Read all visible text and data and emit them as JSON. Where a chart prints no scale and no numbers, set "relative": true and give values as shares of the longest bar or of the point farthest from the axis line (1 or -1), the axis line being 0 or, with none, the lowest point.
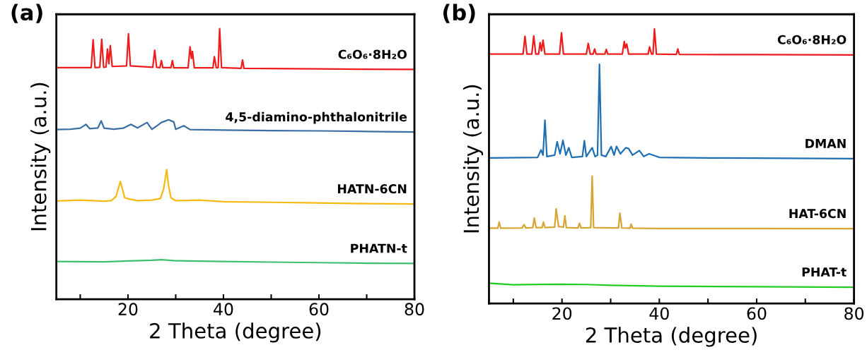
{
  "chart_data": [
    {
      "type": "line",
      "title": "(a)",
      "xlabel": "2 Theta (degree)",
      "ylabel": "Intensity (a.u.)",
      "relative": true,
      "tick_labels": "x",
      "xlim": [
        5,
        80
      ],
      "xticks": [
        {
          "value": 10,
          "label": null
        },
        20,
        {
          "value": 30,
          "label": null
        },
        40,
        {
          "value": 50,
          "label": null
        },
        60,
        {
          "value": 70,
          "label": null
        },
        80
      ],
      "grid": false,
      "legend": false,
      "series": [
        {
          "name": "C₆O₆·8H₂O",
          "color": "#ee1c1c",
          "x": [
            5,
            12.3,
            12.7,
            13.1,
            14.1,
            14.5,
            14.9,
            15.4,
            15.7,
            16.0,
            16.3,
            16.7,
            19.7,
            20.1,
            20.5,
            25.2,
            25.6,
            26.0,
            26.7,
            27.0,
            27.3,
            29.0,
            29.3,
            29.6,
            32.6,
            33.0,
            33.3,
            33.5,
            33.9,
            37.8,
            38.1,
            38.5,
            38.9,
            39.2,
            39.6,
            43.7,
            44.0,
            44.3,
            60,
            80
          ],
          "values": [
            0.856,
            0.856,
            0.959,
            0.856,
            0.857,
            0.961,
            0.857,
            0.858,
            0.924,
            0.87,
            0.937,
            0.86,
            0.862,
            0.981,
            0.862,
            0.857,
            0.92,
            0.857,
            0.856,
            0.882,
            0.856,
            0.856,
            0.882,
            0.855,
            0.855,
            0.933,
            0.89,
            0.916,
            0.855,
            0.855,
            0.896,
            0.855,
            0.856,
            1.0,
            0.856,
            0.853,
            0.884,
            0.853,
            0.851,
            0.849
          ]
        },
        {
          "name": "4,5-diamino-phthalonitrile",
          "color": "#3a6ea5",
          "x": [
            5,
            8,
            10,
            11.2,
            12,
            13.7,
            14.4,
            15,
            17,
            19,
            20.6,
            22,
            24,
            25,
            26,
            27,
            28.5,
            29.6,
            30,
            31.7,
            33,
            40,
            50,
            60,
            70,
            80
          ],
          "values": [
            0.627,
            0.628,
            0.632,
            0.646,
            0.63,
            0.633,
            0.659,
            0.632,
            0.628,
            0.632,
            0.646,
            0.633,
            0.653,
            0.628,
            0.64,
            0.653,
            0.663,
            0.655,
            0.628,
            0.641,
            0.627,
            0.625,
            0.623,
            0.622,
            0.62,
            0.618
          ]
        },
        {
          "name": "HATN-6CN",
          "color": "#f5b914",
          "x": [
            5,
            10,
            15,
            16.5,
            17.5,
            18.0,
            18.4,
            18.8,
            19.3,
            20.3,
            22,
            25,
            26.8,
            27.5,
            28.1,
            28.5,
            29.0,
            30,
            35,
            40,
            50,
            60,
            70,
            80
          ],
          "values": [
            0.363,
            0.366,
            0.362,
            0.364,
            0.38,
            0.41,
            0.435,
            0.41,
            0.375,
            0.37,
            0.364,
            0.366,
            0.372,
            0.41,
            0.479,
            0.42,
            0.375,
            0.364,
            0.366,
            0.36,
            0.358,
            0.356,
            0.353,
            0.352
          ]
        },
        {
          "name": "PHATN-t",
          "color": "#3cbf6e",
          "x": [
            5,
            15,
            20,
            25,
            27,
            30,
            40,
            50,
            60,
            70,
            80
          ],
          "values": [
            0.139,
            0.138,
            0.141,
            0.144,
            0.146,
            0.142,
            0.139,
            0.137,
            0.135,
            0.133,
            0.132
          ]
        }
      ]
    },
    {
      "type": "line",
      "title": "(b)",
      "xlabel": "2 Theta (degree)",
      "ylabel": "Intensity (a.u.)",
      "relative": true,
      "tick_labels": "x",
      "xlim": [
        5,
        80
      ],
      "xticks": [
        {
          "value": 10,
          "label": null
        },
        20,
        {
          "value": 30,
          "label": null
        },
        40,
        {
          "value": 50,
          "label": null
        },
        60,
        {
          "value": 70,
          "label": null
        },
        80
      ],
      "grid": false,
      "legend": false,
      "series": [
        {
          "name": "C₆O₆·8H₂O",
          "color": "#ee1c1c",
          "x": [
            5,
            12.0,
            12.4,
            12.8,
            13.8,
            14.2,
            14.6,
            15.2,
            15.5,
            15.8,
            16.1,
            16.5,
            19.5,
            19.9,
            20.3,
            25.0,
            25.4,
            25.8,
            26.4,
            26.7,
            27.0,
            28.8,
            29.1,
            29.4,
            32.4,
            32.8,
            33.0,
            33.3,
            33.7,
            37.7,
            38.0,
            38.4,
            38.7,
            39.0,
            39.4,
            43.5,
            43.8,
            44.1,
            60,
            80
          ],
          "values": [
            0.908,
            0.908,
            0.973,
            0.908,
            0.908,
            0.974,
            0.908,
            0.908,
            0.95,
            0.92,
            0.959,
            0.908,
            0.908,
            0.986,
            0.908,
            0.908,
            0.947,
            0.908,
            0.908,
            0.927,
            0.908,
            0.908,
            0.925,
            0.908,
            0.908,
            0.954,
            0.93,
            0.945,
            0.908,
            0.908,
            0.934,
            0.908,
            0.908,
            1.0,
            0.908,
            0.907,
            0.927,
            0.907,
            0.906,
            0.905
          ]
        },
        {
          "name": "DMAN",
          "color": "#1f6fb4",
          "x": [
            5,
            15.0,
            15.7,
            16.1,
            16.5,
            16.9,
            18.5,
            19.0,
            19.6,
            20.2,
            20.8,
            21.4,
            22.0,
            24.2,
            24.6,
            25.0,
            26.2,
            26.8,
            27.3,
            27.7,
            28.1,
            29.0,
            30.1,
            30.7,
            31.2,
            32.0,
            33.1,
            33.7,
            34.5,
            35.9,
            36.8,
            37.9,
            40,
            50,
            60,
            80
          ],
          "values": [
            0.53,
            0.532,
            0.559,
            0.54,
            0.667,
            0.535,
            0.54,
            0.589,
            0.545,
            0.594,
            0.54,
            0.567,
            0.532,
            0.535,
            0.593,
            0.535,
            0.567,
            0.535,
            0.54,
            0.871,
            0.54,
            0.535,
            0.571,
            0.54,
            0.572,
            0.545,
            0.567,
            0.564,
            0.54,
            0.557,
            0.535,
            0.545,
            0.532,
            0.53,
            0.529,
            0.527
          ]
        },
        {
          "name": "HAT-6CN",
          "color": "#d9a532",
          "x": [
            5,
            6.8,
            7.1,
            7.4,
            11.8,
            12.2,
            12.6,
            14.0,
            14.3,
            14.7,
            15.9,
            16.2,
            16.5,
            18.5,
            18.8,
            19.3,
            20.3,
            20.6,
            20.9,
            23.3,
            23.6,
            23.9,
            25.9,
            26.2,
            26.5,
            31.6,
            31.9,
            32.3,
            34.0,
            34.2,
            34.5,
            40,
            60,
            80
          ],
          "values": [
            0.274,
            0.274,
            0.296,
            0.274,
            0.275,
            0.287,
            0.275,
            0.276,
            0.311,
            0.276,
            0.276,
            0.296,
            0.276,
            0.278,
            0.344,
            0.28,
            0.278,
            0.319,
            0.276,
            0.275,
            0.292,
            0.275,
            0.276,
            0.464,
            0.276,
            0.275,
            0.329,
            0.275,
            0.274,
            0.289,
            0.274,
            0.273,
            0.273,
            0.272
          ]
        },
        {
          "name": "PHAT-t",
          "color": "#22cc22",
          "x": [
            5,
            10,
            20,
            25,
            30,
            40,
            60,
            80
          ],
          "values": [
            0.074,
            0.068,
            0.07,
            0.069,
            0.066,
            0.063,
            0.061,
            0.059
          ]
        }
      ]
    }
  ]
}
